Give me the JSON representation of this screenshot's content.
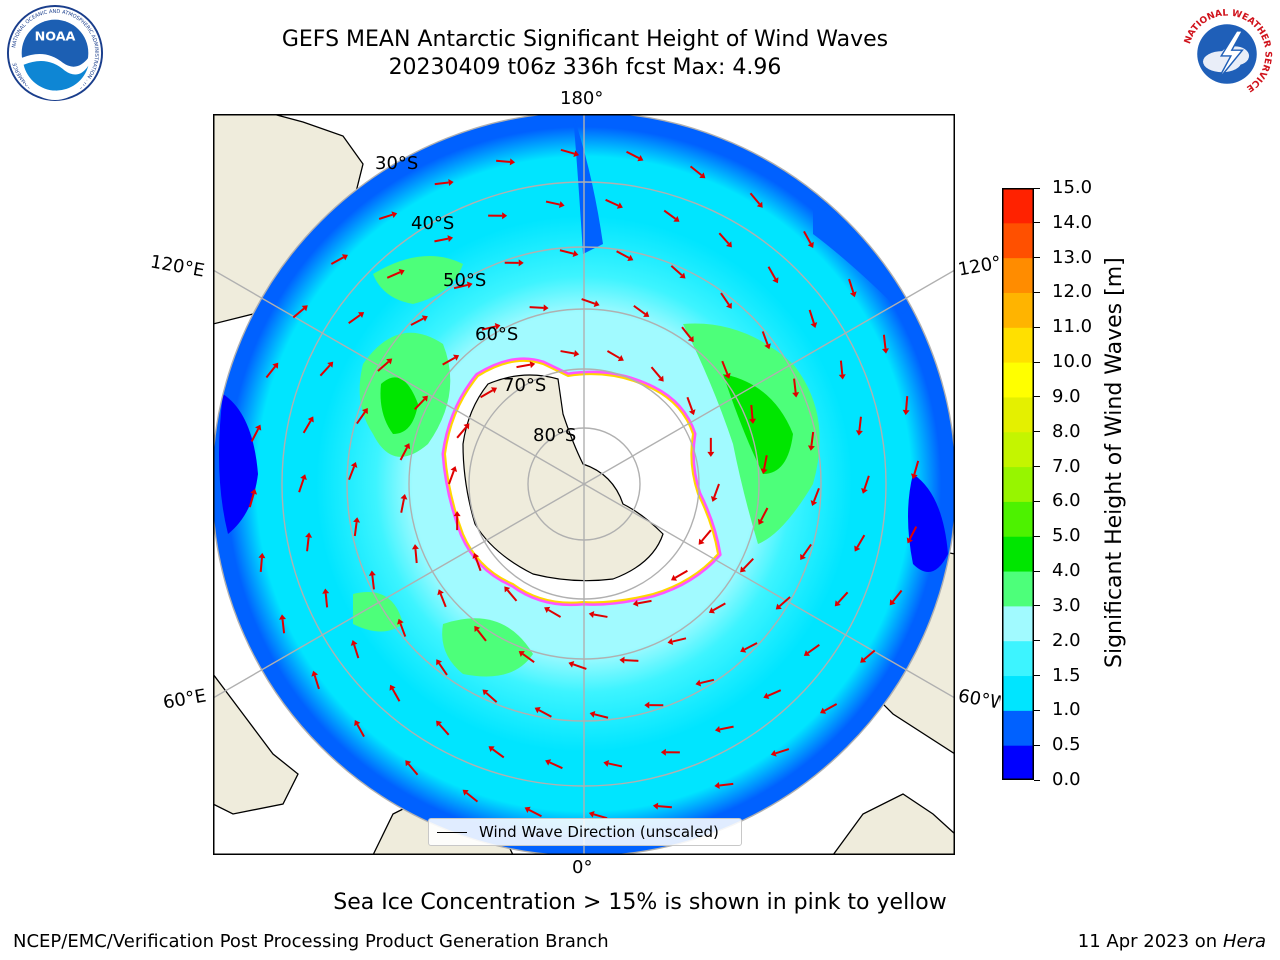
{
  "title": {
    "line1": "GEFS MEAN Antarctic Significant Height of Wind Waves",
    "line2": "20230409 t06z 336h fcst   Max: 4.96"
  },
  "map": {
    "lon_labels": {
      "top": "180°",
      "bottom": "0°",
      "upper_left": "120°E",
      "upper_right": "120°W",
      "lower_left": "60°E",
      "lower_right": "60°W"
    },
    "lat_labels": [
      "30°S",
      "40°S",
      "50°S",
      "60°S",
      "70°S",
      "80°S"
    ],
    "legend_label": "Wind Wave Direction (unscaled)"
  },
  "colorbar": {
    "ticks": [
      "0.0",
      "0.5",
      "1.0",
      "1.5",
      "2.0",
      "3.0",
      "4.0",
      "5.0",
      "6.0",
      "7.0",
      "8.0",
      "9.0",
      "10.0",
      "11.0",
      "12.0",
      "13.0",
      "14.0",
      "15.0"
    ],
    "colors": [
      "#0000ff",
      "#0061ff",
      "#00e5ff",
      "#3df4ff",
      "#a1faff",
      "#4dff7a",
      "#00e600",
      "#4df200",
      "#97f500",
      "#c4f500",
      "#e4f000",
      "#ffff00",
      "#ffe000",
      "#ffb400",
      "#ff8c00",
      "#ff5000",
      "#ff2200"
    ],
    "label": "Significant Height of Wind Waves [m]"
  },
  "caption": "Sea Ice Concentration > 15% is shown in pink to yellow",
  "footer": {
    "left": "NCEP/EMC/Verification Post Processing Product Generation Branch",
    "right_prefix": "11 Apr 2023 on ",
    "right_machine": "Hera"
  },
  "logos": {
    "left": "NOAA",
    "left_ring": "NATIONAL OCEANIC AND ATMOSPHERIC ADMINISTRATION · U.S. DEPARTMENT OF COMMERCE",
    "right_ring": "NATIONAL WEATHER SERVICE"
  }
}
